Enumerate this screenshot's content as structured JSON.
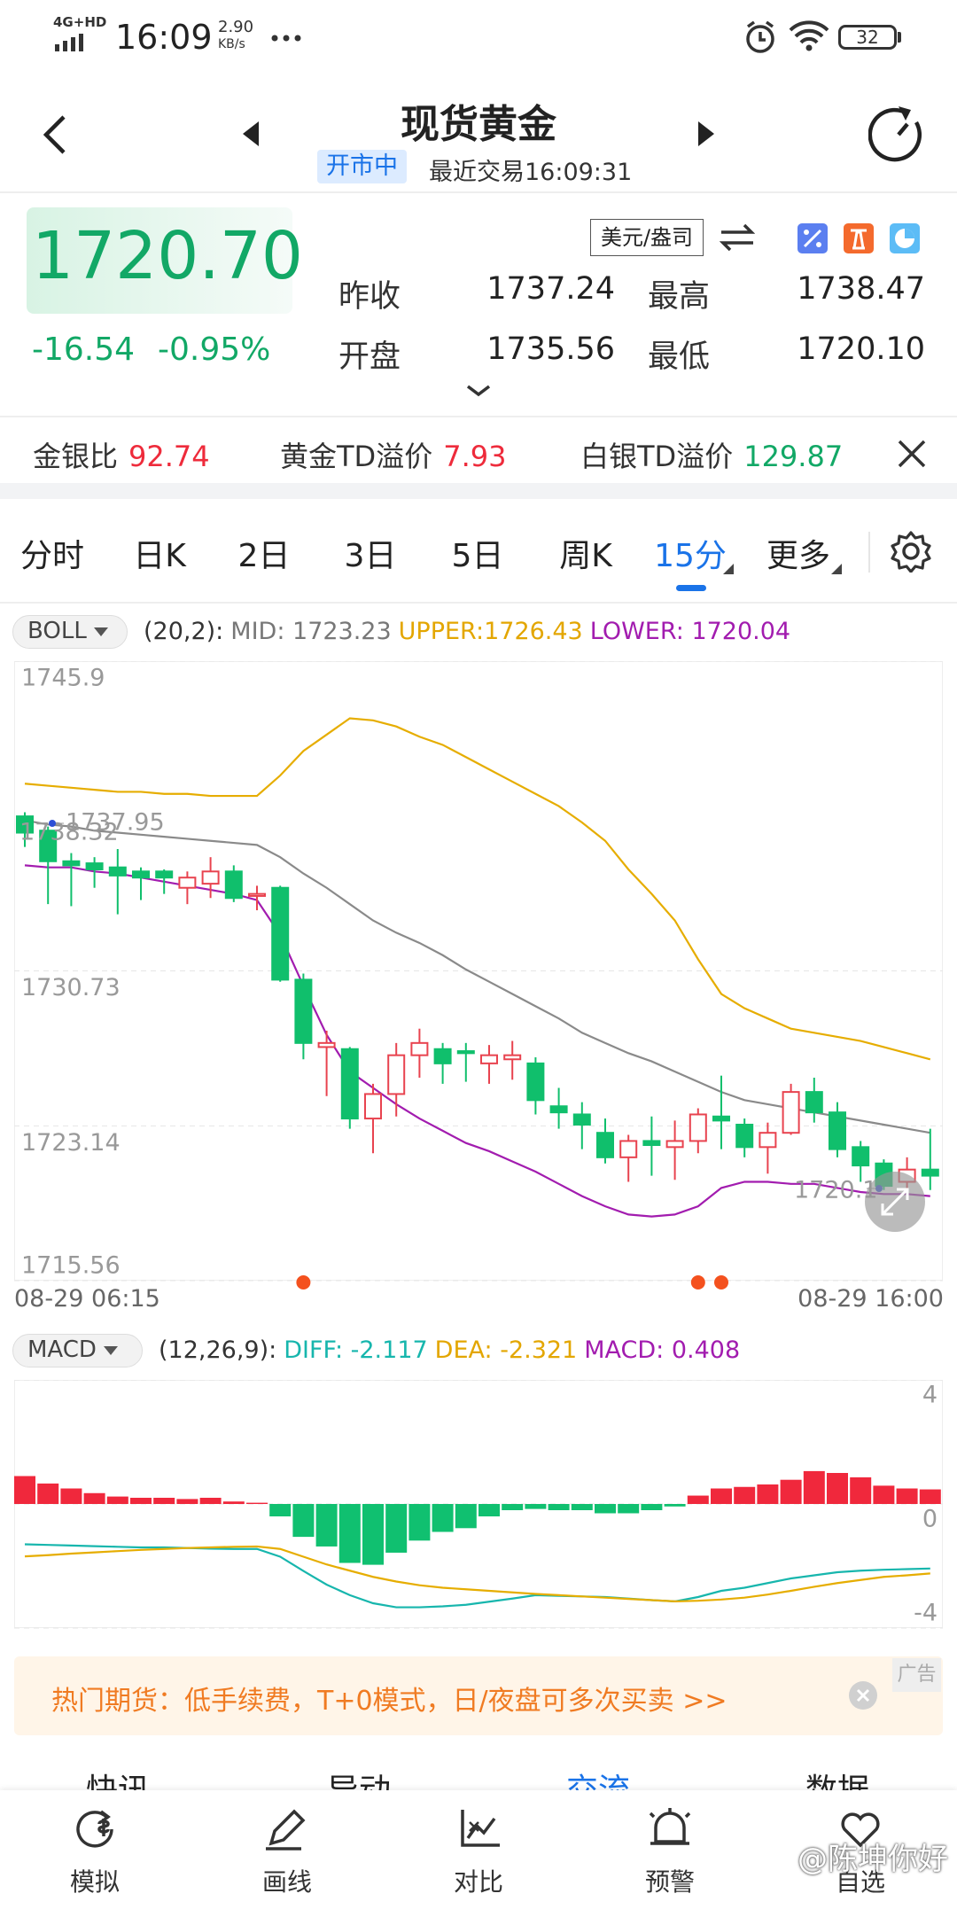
{
  "status_bar": {
    "network": "4G+HD",
    "time": "16:09",
    "speed": "2.90",
    "speed_unit": "KB/s",
    "battery": "32"
  },
  "header": {
    "title": "现货黄金",
    "status": "开市中",
    "last_trade": "最近交易16:09:31"
  },
  "quote": {
    "price": "1720.70",
    "change": "-16.54",
    "change_pct": "-0.95%",
    "unit": "美元/盎司",
    "stats": [
      {
        "label": "昨收",
        "value": "1737.24"
      },
      {
        "label": "最高",
        "value": "1738.47"
      },
      {
        "label": "开盘",
        "value": "1735.56"
      },
      {
        "label": "最低",
        "value": "1720.10"
      }
    ]
  },
  "ratios": [
    {
      "label": "金银比",
      "value": "92.74",
      "color": "#ee2b3b"
    },
    {
      "label": "黄金TD溢价",
      "value": "7.93",
      "color": "#ee2b3b"
    },
    {
      "label": "白银TD溢价",
      "value": "129.87",
      "color": "#12a866"
    }
  ],
  "tabs": [
    {
      "label": "分时"
    },
    {
      "label": "日K"
    },
    {
      "label": "2日"
    },
    {
      "label": "3日"
    },
    {
      "label": "5日"
    },
    {
      "label": "周K"
    },
    {
      "label": "15分",
      "active": true,
      "dropdown": true
    },
    {
      "label": "更多",
      "dropdown": true
    }
  ],
  "kline": {
    "type": "candlestick",
    "indicator": "BOLL",
    "legend": [
      {
        "text": "(20,2):",
        "color": "#333333"
      },
      {
        "text": "MID: 1723.23",
        "color": "#777777"
      },
      {
        "text": "UPPER:1726.43",
        "color": "#e3a600"
      },
      {
        "text": "LOWER: 1720.04",
        "color": "#a21caf"
      }
    ],
    "ylim": [
      1715.56,
      1745.9
    ],
    "yticks": [
      1715.56,
      1723.14,
      1730.73,
      1745.9
    ],
    "x_start": "08-29 06:15",
    "x_end": "08-29 16:00",
    "max_label": "1737.95",
    "left_label": "1738.32",
    "min_label": "1720.1",
    "up_color": "#e8434f",
    "down_color": "#10bf6c",
    "candles": [
      {
        "open": 1738.3,
        "high": 1738.5,
        "low": 1736.8,
        "close": 1737.5
      },
      {
        "open": 1737.6,
        "high": 1737.8,
        "low": 1734.0,
        "close": 1736.1
      },
      {
        "open": 1736.1,
        "high": 1736.5,
        "low": 1733.9,
        "close": 1735.9
      },
      {
        "open": 1736.0,
        "high": 1736.3,
        "low": 1734.8,
        "close": 1735.7
      },
      {
        "open": 1735.8,
        "high": 1736.7,
        "low": 1733.5,
        "close": 1735.4
      },
      {
        "open": 1735.6,
        "high": 1735.8,
        "low": 1734.2,
        "close": 1735.3
      },
      {
        "open": 1735.6,
        "high": 1735.7,
        "low": 1734.5,
        "close": 1735.3
      },
      {
        "open": 1734.8,
        "high": 1735.6,
        "low": 1734.0,
        "close": 1735.3
      },
      {
        "open": 1735.0,
        "high": 1736.3,
        "low": 1734.3,
        "close": 1735.6
      },
      {
        "open": 1735.6,
        "high": 1735.9,
        "low": 1734.1,
        "close": 1734.3
      },
      {
        "open": 1734.4,
        "high": 1734.9,
        "low": 1733.7,
        "close": 1734.5
      },
      {
        "open": 1734.8,
        "high": 1734.9,
        "low": 1730.2,
        "close": 1730.3
      },
      {
        "open": 1730.3,
        "high": 1730.6,
        "low": 1726.4,
        "close": 1727.2
      },
      {
        "open": 1727.0,
        "high": 1727.8,
        "low": 1724.6,
        "close": 1727.2
      },
      {
        "open": 1726.9,
        "high": 1727.0,
        "low": 1723.0,
        "close": 1723.5
      },
      {
        "open": 1723.5,
        "high": 1725.2,
        "low": 1721.8,
        "close": 1724.7
      },
      {
        "open": 1724.7,
        "high": 1727.2,
        "low": 1723.6,
        "close": 1726.6
      },
      {
        "open": 1726.6,
        "high": 1727.9,
        "low": 1725.5,
        "close": 1727.2
      },
      {
        "open": 1726.9,
        "high": 1727.2,
        "low": 1725.2,
        "close": 1726.2
      },
      {
        "open": 1726.8,
        "high": 1727.2,
        "low": 1725.3,
        "close": 1726.7
      },
      {
        "open": 1726.2,
        "high": 1727.1,
        "low": 1725.2,
        "close": 1726.6
      },
      {
        "open": 1726.4,
        "high": 1727.3,
        "low": 1725.4,
        "close": 1726.6
      },
      {
        "open": 1726.2,
        "high": 1726.5,
        "low": 1723.7,
        "close": 1724.4
      },
      {
        "open": 1724.1,
        "high": 1725.0,
        "low": 1723.0,
        "close": 1723.8
      },
      {
        "open": 1723.7,
        "high": 1724.3,
        "low": 1722.0,
        "close": 1723.2
      },
      {
        "open": 1722.8,
        "high": 1723.5,
        "low": 1721.3,
        "close": 1721.6
      },
      {
        "open": 1721.6,
        "high": 1722.7,
        "low": 1720.4,
        "close": 1722.4
      },
      {
        "open": 1722.4,
        "high": 1723.6,
        "low": 1720.7,
        "close": 1722.2
      },
      {
        "open": 1722.1,
        "high": 1723.4,
        "low": 1720.5,
        "close": 1722.4
      },
      {
        "open": 1722.4,
        "high": 1724.0,
        "low": 1721.8,
        "close": 1723.7
      },
      {
        "open": 1723.6,
        "high": 1725.6,
        "low": 1722.0,
        "close": 1723.4
      },
      {
        "open": 1723.2,
        "high": 1723.5,
        "low": 1721.6,
        "close": 1722.1
      },
      {
        "open": 1722.1,
        "high": 1723.3,
        "low": 1720.8,
        "close": 1722.8
      },
      {
        "open": 1722.8,
        "high": 1725.2,
        "low": 1722.7,
        "close": 1724.8
      },
      {
        "open": 1724.8,
        "high": 1725.5,
        "low": 1723.3,
        "close": 1723.8
      },
      {
        "open": 1723.8,
        "high": 1724.3,
        "low": 1721.6,
        "close": 1722.0
      },
      {
        "open": 1722.1,
        "high": 1722.4,
        "low": 1720.4,
        "close": 1721.2
      },
      {
        "open": 1721.3,
        "high": 1721.5,
        "low": 1720.0,
        "close": 1720.2
      },
      {
        "open": 1720.4,
        "high": 1721.6,
        "low": 1719.8,
        "close": 1721.0
      },
      {
        "open": 1721.0,
        "high": 1723.0,
        "low": 1720.0,
        "close": 1720.7
      }
    ],
    "series": [
      {
        "name": "UPPER",
        "color": "#e6ad00",
        "values": [
          1739.9,
          1739.8,
          1739.7,
          1739.6,
          1739.5,
          1739.5,
          1739.4,
          1739.4,
          1739.3,
          1739.3,
          1739.3,
          1740.3,
          1741.5,
          1742.3,
          1743.1,
          1743.0,
          1742.7,
          1742.2,
          1741.8,
          1741.2,
          1740.6,
          1740.0,
          1739.4,
          1738.8,
          1738.0,
          1737.1,
          1735.7,
          1734.5,
          1733.2,
          1731.3,
          1729.6,
          1728.9,
          1728.4,
          1727.9,
          1727.7,
          1727.5,
          1727.3,
          1727.0,
          1726.7,
          1726.4
        ]
      },
      {
        "name": "MID",
        "color": "#8a8a8a",
        "values": [
          1738.1,
          1737.9,
          1737.8,
          1737.6,
          1737.5,
          1737.4,
          1737.3,
          1737.2,
          1737.1,
          1737.0,
          1736.9,
          1736.3,
          1735.5,
          1734.8,
          1734.0,
          1733.2,
          1732.6,
          1732.1,
          1731.5,
          1730.8,
          1730.2,
          1729.6,
          1729.0,
          1728.4,
          1727.7,
          1727.2,
          1726.7,
          1726.3,
          1725.8,
          1725.3,
          1724.8,
          1724.4,
          1724.2,
          1724.0,
          1723.8,
          1723.6,
          1723.4,
          1723.2,
          1723.0,
          1722.8
        ]
      },
      {
        "name": "LOWER",
        "color": "#a21caf",
        "values": [
          1735.9,
          1735.8,
          1735.8,
          1735.6,
          1735.5,
          1735.3,
          1735.1,
          1734.9,
          1734.7,
          1734.5,
          1734.2,
          1732.5,
          1730.0,
          1727.6,
          1725.8,
          1725.0,
          1724.2,
          1723.5,
          1722.9,
          1722.3,
          1721.9,
          1721.4,
          1720.9,
          1720.3,
          1719.7,
          1719.2,
          1718.8,
          1718.7,
          1718.8,
          1719.2,
          1720.1,
          1720.4,
          1720.4,
          1720.3,
          1720.3,
          1720.1,
          1719.9,
          1719.8,
          1719.8,
          1719.7
        ]
      }
    ]
  },
  "macd": {
    "type": "bar",
    "indicator": "MACD",
    "legend": [
      {
        "text": "(12,26,9):",
        "color": "#333333"
      },
      {
        "text": "DIFF: -2.117",
        "color": "#17b6ad"
      },
      {
        "text": "DEA: -2.321",
        "color": "#e3a600"
      },
      {
        "text": "MACD: 0.408",
        "color": "#a21caf"
      }
    ],
    "ylim": [
      -4,
      4
    ],
    "yticks": [
      -4,
      0,
      4
    ],
    "up_color": "#f0283c",
    "down_color": "#10c070",
    "histogram": [
      0.9,
      0.66,
      0.5,
      0.35,
      0.24,
      0.2,
      0.2,
      0.16,
      0.2,
      0.08,
      0.04,
      -0.4,
      -1.06,
      -1.37,
      -1.9,
      -1.96,
      -1.57,
      -1.18,
      -0.9,
      -0.78,
      -0.4,
      -0.2,
      -0.16,
      -0.2,
      -0.2,
      -0.3,
      -0.3,
      -0.2,
      -0.08,
      0.27,
      0.5,
      0.55,
      0.63,
      0.78,
      1.06,
      1.0,
      0.86,
      0.59,
      0.5,
      0.47
    ],
    "series": [
      {
        "name": "DIFF",
        "color": "#17b6ad",
        "values": [
          -1.3,
          -1.32,
          -1.34,
          -1.36,
          -1.38,
          -1.4,
          -1.4,
          -1.42,
          -1.44,
          -1.45,
          -1.45,
          -1.7,
          -2.16,
          -2.6,
          -2.94,
          -3.2,
          -3.33,
          -3.33,
          -3.3,
          -3.25,
          -3.15,
          -3.05,
          -2.94,
          -2.96,
          -2.98,
          -3.0,
          -3.05,
          -3.1,
          -3.14,
          -3.0,
          -2.8,
          -2.7,
          -2.55,
          -2.4,
          -2.3,
          -2.2,
          -2.15,
          -2.12,
          -2.1,
          -2.08
        ]
      },
      {
        "name": "DEA",
        "color": "#e6ad00",
        "values": [
          -1.69,
          -1.65,
          -1.6,
          -1.56,
          -1.52,
          -1.48,
          -1.45,
          -1.42,
          -1.4,
          -1.38,
          -1.37,
          -1.45,
          -1.7,
          -1.95,
          -2.15,
          -2.35,
          -2.5,
          -2.62,
          -2.7,
          -2.75,
          -2.8,
          -2.85,
          -2.9,
          -2.94,
          -2.98,
          -3.02,
          -3.06,
          -3.1,
          -3.14,
          -3.12,
          -3.08,
          -3.02,
          -2.92,
          -2.8,
          -2.67,
          -2.55,
          -2.45,
          -2.35,
          -2.3,
          -2.24
        ]
      }
    ]
  },
  "ad": {
    "text": "热门期货：低手续费，T+0模式，日/夜盘可多次买卖 >>",
    "tag": "广告"
  },
  "sub_tabs": [
    {
      "label": "快讯"
    },
    {
      "label": "异动"
    },
    {
      "label": "交流",
      "active": true
    },
    {
      "label": "数据"
    }
  ],
  "nav": [
    "模拟",
    "画线",
    "对比",
    "预警",
    "自选"
  ],
  "watermark": "@陈坤你好"
}
